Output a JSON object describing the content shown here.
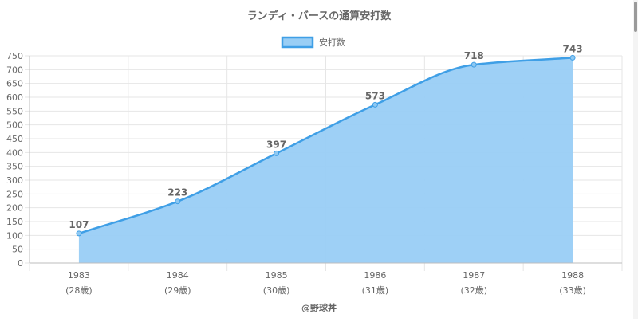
{
  "chart_data": {
    "type": "area",
    "title": "ランディ・バースの通算安打数",
    "series": [
      {
        "name": "安打数",
        "values": [
          107,
          223,
          397,
          573,
          718,
          743
        ]
      }
    ],
    "categories": [
      "1983",
      "1984",
      "1985",
      "1986",
      "1987",
      "1988"
    ],
    "category_sublabels": [
      "(28歳)",
      "(29歳)",
      "(30歳)",
      "(31歳)",
      "(32歳)",
      "(33歳)"
    ],
    "data_labels": [
      "107",
      "223",
      "397",
      "573",
      "718",
      "743"
    ],
    "ylim": [
      0,
      750
    ],
    "yticks": [
      0,
      50,
      100,
      150,
      200,
      250,
      300,
      350,
      400,
      450,
      500,
      550,
      600,
      650,
      700,
      750
    ],
    "grid": true,
    "legend": "top-center",
    "footer": "@野球丼",
    "colors": {
      "line": "#3f9fe6",
      "fill": "#99cef5",
      "grid": "#e6e6e6",
      "axis": "#bdbdbd",
      "text": "#666666"
    }
  }
}
